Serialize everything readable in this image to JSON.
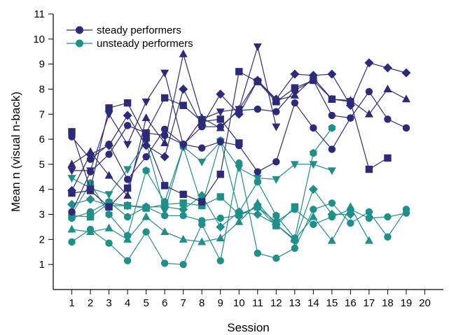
{
  "chart_data": {
    "type": "line",
    "title": "",
    "xlabel": "Session",
    "ylabel": "Mean n (visual n-back)",
    "xlim": [
      0,
      21
    ],
    "ylim": [
      0,
      11
    ],
    "x_ticks": [
      1,
      2,
      3,
      4,
      5,
      6,
      7,
      8,
      9,
      10,
      11,
      12,
      13,
      14,
      15,
      16,
      17,
      18,
      19,
      20
    ],
    "y_ticks": [
      1,
      2,
      3,
      4,
      5,
      6,
      7,
      8,
      9,
      10,
      11
    ],
    "grid": false,
    "legend_position": "top-left",
    "colors": {
      "steady": "#2e2a7a",
      "unsteady": "#1f8f8a"
    },
    "legend": [
      {
        "label": "steady performers",
        "group": "steady"
      },
      {
        "label": "unsteady performers",
        "group": "unsteady"
      }
    ],
    "series": [
      {
        "group": "steady",
        "marker": "circle",
        "points": [
          [
            1,
            3.1
          ],
          [
            2,
            4.7
          ],
          [
            3,
            5.4
          ],
          [
            4,
            6.55
          ],
          [
            5,
            6.25
          ],
          [
            6,
            6.15
          ],
          [
            7,
            5.8
          ],
          [
            8,
            5.65
          ],
          [
            9,
            5.9
          ],
          [
            10,
            5.75
          ],
          [
            11,
            4.7
          ],
          [
            12,
            5.1
          ],
          [
            13,
            7.45
          ],
          [
            14,
            6.45
          ],
          [
            15,
            5.6
          ],
          [
            16,
            6.85
          ],
          [
            17,
            7.9
          ],
          [
            18,
            6.8
          ],
          [
            19,
            6.45
          ]
        ]
      },
      {
        "group": "steady",
        "marker": "circle",
        "points": [
          [
            1,
            6.1
          ],
          [
            2,
            5.2
          ],
          [
            3,
            5.8
          ],
          [
            4,
            4.4
          ],
          [
            5,
            5.3
          ],
          [
            6,
            6.4
          ],
          [
            7,
            5.8
          ],
          [
            8,
            6.5
          ],
          [
            9,
            6.5
          ],
          [
            10,
            7.15
          ],
          [
            11,
            7.2
          ],
          [
            12,
            7.1
          ],
          [
            13,
            7.95
          ],
          [
            14,
            8.35
          ],
          [
            15,
            6.95
          ],
          [
            16,
            6.85
          ]
        ]
      },
      {
        "group": "steady",
        "marker": "square",
        "points": [
          [
            1,
            6.3
          ],
          [
            2,
            4.0
          ],
          [
            3,
            7.25
          ],
          [
            4,
            7.45
          ],
          [
            5,
            6.05
          ],
          [
            6,
            4.15
          ],
          [
            7,
            3.8
          ],
          [
            8,
            3.5
          ],
          [
            9,
            4.6
          ],
          [
            10,
            8.7
          ],
          [
            11,
            8.3
          ],
          [
            12,
            7.5
          ],
          [
            13,
            8.05
          ],
          [
            14,
            8.35
          ],
          [
            15,
            7.6
          ],
          [
            16,
            7.5
          ],
          [
            17,
            4.8
          ],
          [
            18,
            5.25
          ]
        ]
      },
      {
        "group": "steady",
        "marker": "square",
        "points": [
          [
            1,
            3.85
          ],
          [
            2,
            3.95
          ],
          [
            3,
            3.3
          ],
          [
            4,
            4.05
          ],
          [
            5,
            6.25
          ],
          [
            6,
            7.65
          ],
          [
            7,
            7.35
          ],
          [
            8,
            6.7
          ],
          [
            9,
            6.8
          ],
          [
            10,
            5.85
          ]
        ]
      },
      {
        "group": "steady",
        "marker": "diamond",
        "points": [
          [
            1,
            3.95
          ],
          [
            2,
            5.4
          ],
          [
            3,
            5.75
          ],
          [
            4,
            6.95
          ],
          [
            5,
            5.75
          ],
          [
            6,
            5.3
          ],
          [
            7,
            8.0
          ],
          [
            8,
            6.55
          ],
          [
            9,
            7.8
          ],
          [
            10,
            7.0
          ],
          [
            11,
            8.35
          ],
          [
            12,
            7.6
          ],
          [
            13,
            8.6
          ],
          [
            14,
            8.55
          ],
          [
            15,
            8.6
          ],
          [
            16,
            7.35
          ],
          [
            17,
            9.05
          ],
          [
            18,
            8.85
          ],
          [
            19,
            8.65
          ]
        ]
      },
      {
        "group": "steady",
        "marker": "triangle-up",
        "points": [
          [
            1,
            5.0
          ],
          [
            2,
            5.5
          ],
          [
            3,
            4.55
          ],
          [
            4,
            3.75
          ],
          [
            5,
            6.85
          ],
          [
            6,
            5.85
          ],
          [
            7,
            9.4
          ],
          [
            8,
            6.85
          ],
          [
            9,
            6.45
          ],
          [
            10,
            7.2
          ],
          [
            11,
            8.35
          ],
          [
            12,
            7.55
          ],
          [
            13,
            7.75
          ],
          [
            14,
            8.45
          ],
          [
            15,
            7.6
          ],
          [
            16,
            7.55
          ],
          [
            17,
            7.0
          ],
          [
            18,
            8.0
          ],
          [
            19,
            7.6
          ]
        ]
      },
      {
        "group": "steady",
        "marker": "triangle-down",
        "points": [
          [
            1,
            4.75
          ],
          [
            2,
            4.75
          ],
          [
            3,
            7.0
          ],
          [
            4,
            5.8
          ],
          [
            5,
            7.5
          ],
          [
            6,
            8.65
          ],
          [
            7,
            5.75
          ],
          [
            8,
            6.8
          ],
          [
            9,
            7.1
          ],
          [
            10,
            7.2
          ],
          [
            11,
            9.7
          ],
          [
            12,
            6.5
          ]
        ]
      },
      {
        "group": "unsteady",
        "marker": "circle",
        "points": [
          [
            1,
            1.9
          ],
          [
            2,
            2.4
          ],
          [
            3,
            1.85
          ],
          [
            4,
            1.15
          ],
          [
            5,
            2.3
          ],
          [
            6,
            1.05
          ],
          [
            7,
            1.0
          ],
          [
            8,
            2.6
          ],
          [
            9,
            1.15
          ],
          [
            10,
            5.05
          ],
          [
            11,
            1.45
          ],
          [
            12,
            1.25
          ],
          [
            13,
            1.65
          ],
          [
            14,
            3.2
          ],
          [
            15,
            3.45
          ],
          [
            16,
            2.65
          ],
          [
            17,
            3.1
          ],
          [
            18,
            2.1
          ],
          [
            19,
            3.2
          ]
        ]
      },
      {
        "group": "unsteady",
        "marker": "circle",
        "points": [
          [
            1,
            2.85
          ],
          [
            2,
            3.1
          ],
          [
            3,
            3.5
          ],
          [
            4,
            2.9
          ],
          [
            5,
            3.3
          ],
          [
            6,
            2.95
          ],
          [
            7,
            2.95
          ],
          [
            8,
            2.75
          ],
          [
            9,
            2.85
          ],
          [
            10,
            2.95
          ],
          [
            11,
            3.3
          ],
          [
            12,
            2.7
          ],
          [
            13,
            3.2
          ],
          [
            14,
            2.6
          ],
          [
            15,
            2.9
          ],
          [
            16,
            3.2
          ],
          [
            17,
            2.85
          ],
          [
            18,
            2.9
          ],
          [
            19,
            3.05
          ]
        ]
      },
      {
        "group": "unsteady",
        "marker": "hexagon",
        "points": [
          [
            1,
            3.0
          ],
          [
            2,
            4.25
          ],
          [
            3,
            3.0
          ],
          [
            4,
            2.15
          ],
          [
            5,
            4.75
          ],
          [
            6,
            3.5
          ],
          [
            7,
            5.7
          ],
          [
            8,
            3.35
          ],
          [
            9,
            5.95
          ],
          [
            10,
            3.1
          ],
          [
            11,
            4.3
          ],
          [
            12,
            2.95
          ],
          [
            13,
            2.05
          ],
          [
            14,
            5.45
          ],
          [
            15,
            6.45
          ]
        ]
      },
      {
        "group": "unsteady",
        "marker": "square",
        "points": [
          [
            1,
            2.95
          ],
          [
            2,
            2.9
          ],
          [
            3,
            3.45
          ],
          [
            4,
            3.35
          ],
          [
            5,
            3.25
          ],
          [
            6,
            3.4
          ],
          [
            7,
            3.45
          ],
          [
            8,
            3.35
          ],
          [
            9,
            3.7
          ],
          [
            10,
            3.0
          ],
          [
            11,
            3.3
          ],
          [
            12,
            2.55
          ],
          [
            13,
            3.3
          ]
        ]
      },
      {
        "group": "unsteady",
        "marker": "diamond",
        "points": [
          [
            1,
            3.4
          ],
          [
            2,
            3.6
          ],
          [
            3,
            3.35
          ],
          [
            4,
            3.35
          ],
          [
            5,
            3.3
          ],
          [
            6,
            3.3
          ],
          [
            7,
            3.2
          ],
          [
            8,
            3.75
          ],
          [
            9,
            2.5
          ],
          [
            10,
            3.1
          ],
          [
            11,
            3.0
          ],
          [
            12,
            2.6
          ],
          [
            13,
            1.95
          ],
          [
            14,
            4.0
          ],
          [
            15,
            3.0
          ],
          [
            16,
            3.0
          ]
        ]
      },
      {
        "group": "unsteady",
        "marker": "triangle-up",
        "points": [
          [
            1,
            2.4
          ],
          [
            2,
            2.3
          ],
          [
            3,
            2.45
          ],
          [
            4,
            2.0
          ],
          [
            5,
            2.9
          ],
          [
            6,
            2.3
          ],
          [
            7,
            2.0
          ],
          [
            8,
            1.9
          ],
          [
            9,
            2.05
          ],
          [
            10,
            2.7
          ],
          [
            11,
            3.45
          ],
          [
            12,
            2.6
          ],
          [
            13,
            2.0
          ],
          [
            14,
            2.9
          ],
          [
            15,
            1.95
          ],
          [
            16,
            3.3
          ],
          [
            17,
            1.95
          ]
        ]
      },
      {
        "group": "unsteady",
        "marker": "triangle-down",
        "points": [
          [
            1,
            4.45
          ],
          [
            2,
            4.05
          ],
          [
            3,
            3.8
          ],
          [
            4,
            4.8
          ],
          [
            5,
            5.9
          ],
          [
            6,
            3.15
          ],
          [
            7,
            5.7
          ],
          [
            8,
            5.1
          ],
          [
            9,
            5.9
          ],
          [
            10,
            4.85
          ],
          [
            11,
            4.45
          ],
          [
            12,
            4.4
          ],
          [
            13,
            5.0
          ],
          [
            14,
            5.0
          ],
          [
            15,
            4.75
          ]
        ]
      }
    ]
  }
}
